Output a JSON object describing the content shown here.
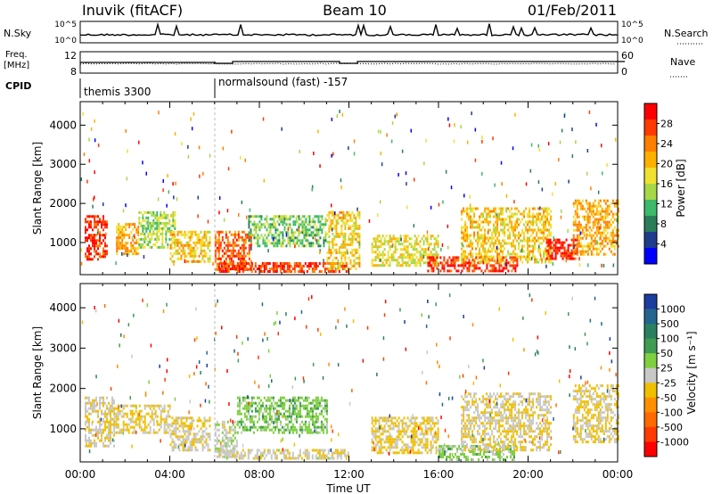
{
  "header": {
    "station": "Inuvik (fitACF)",
    "beam": "Beam 10",
    "date": "01/Feb/2011"
  },
  "summary_panels": {
    "nsky_label": "N.Sky",
    "nsky_ticks": [
      "10^5",
      "10^0"
    ],
    "nsearch_label": "N.Search",
    "nsearch_ticks": [
      "10^5",
      "10^0"
    ],
    "freq_label": "Freq.",
    "freq_unit": "[MHz]",
    "freq_ticks": [
      "12",
      "8"
    ],
    "nave_label": "Nave",
    "nave_ticks": [
      "60",
      "0"
    ],
    "cpid_label": "CPID",
    "cpid_segments": [
      {
        "label": "themis 3300",
        "start_hour": 0
      },
      {
        "label": "normalsound (fast) -157",
        "start_hour": 6
      }
    ]
  },
  "chart_data": [
    {
      "type": "heatmap",
      "name": "power",
      "xlabel": "",
      "ylabel": "Slant Range [km]",
      "xlim": [
        0,
        24
      ],
      "ylim": [
        180,
        4600
      ],
      "y_ticks": [
        1000,
        2000,
        3000,
        4000
      ],
      "colorbar": {
        "label": "Power [dB]",
        "ticks": [
          "28",
          "24",
          "20",
          "16",
          "12",
          "8",
          "4"
        ],
        "colors": [
          "#ff0000",
          "#ff3a00",
          "#ff7f00",
          "#ffb000",
          "#f0e030",
          "#a6d848",
          "#3cb96a",
          "#2a7d58",
          "#203c8c",
          "#0000ff"
        ],
        "range": [
          0,
          30
        ]
      },
      "blobs": [
        {
          "t0": 0.2,
          "t1": 1.2,
          "r0": 600,
          "r1": 1700,
          "v": 26
        },
        {
          "t0": 1.6,
          "t1": 2.6,
          "r0": 700,
          "r1": 1500,
          "v": 20
        },
        {
          "t0": 2.6,
          "t1": 4.2,
          "r0": 900,
          "r1": 1800,
          "v": 14
        },
        {
          "t0": 4.0,
          "t1": 5.8,
          "r0": 500,
          "r1": 1300,
          "v": 18
        },
        {
          "t0": 6.0,
          "t1": 7.6,
          "r0": 300,
          "r1": 1300,
          "v": 24
        },
        {
          "t0": 6.2,
          "t1": 12.0,
          "r0": 250,
          "r1": 500,
          "v": 26
        },
        {
          "t0": 7.5,
          "t1": 11.0,
          "r0": 900,
          "r1": 1700,
          "v": 12
        },
        {
          "t0": 11.0,
          "t1": 12.5,
          "r0": 300,
          "r1": 1800,
          "v": 18
        },
        {
          "t0": 13.0,
          "t1": 16.0,
          "r0": 400,
          "r1": 1200,
          "v": 16
        },
        {
          "t0": 15.5,
          "t1": 19.5,
          "r0": 250,
          "r1": 650,
          "v": 27
        },
        {
          "t0": 17.0,
          "t1": 21.0,
          "r0": 500,
          "r1": 1900,
          "v": 18
        },
        {
          "t0": 20.8,
          "t1": 22.2,
          "r0": 600,
          "r1": 1100,
          "v": 27
        },
        {
          "t0": 22.0,
          "t1": 24.0,
          "r0": 700,
          "r1": 2100,
          "v": 20
        }
      ]
    },
    {
      "type": "heatmap",
      "name": "velocity",
      "xlabel": "Time UT",
      "ylabel": "Slant Range [km]",
      "xlim": [
        0,
        24
      ],
      "ylim": [
        180,
        4600
      ],
      "x_ticks": [
        "00:00",
        "04:00",
        "08:00",
        "12:00",
        "16:00",
        "20:00",
        "00:00"
      ],
      "y_ticks": [
        1000,
        2000,
        3000,
        4000
      ],
      "colorbar": {
        "label": "Velocity [m s⁻¹]",
        "ticks": [
          "1000",
          "500",
          "100",
          "50",
          "25",
          "-25",
          "-50",
          "-100",
          "-500",
          "-1000"
        ],
        "colors": [
          "#1a3d9e",
          "#23658f",
          "#2a8060",
          "#3f9c52",
          "#7fd040",
          "#c8c8c8",
          "#f0c000",
          "#ff9000",
          "#ff6a00",
          "#ff3a00",
          "#ff0000"
        ],
        "range": [
          -1100,
          1100
        ]
      },
      "blobs": [
        {
          "t0": 0.2,
          "t1": 1.5,
          "r0": 600,
          "r1": 1800,
          "v": -80
        },
        {
          "t0": 1.5,
          "t1": 4.0,
          "r0": 900,
          "r1": 1600,
          "v": -120
        },
        {
          "t0": 4.0,
          "t1": 5.8,
          "r0": 500,
          "r1": 1300,
          "v": -60
        },
        {
          "t0": 6.0,
          "t1": 7.0,
          "r0": 300,
          "r1": 1200,
          "v": 30
        },
        {
          "t0": 7.0,
          "t1": 11.0,
          "r0": 900,
          "r1": 1800,
          "v": 220
        },
        {
          "t0": 6.2,
          "t1": 12.0,
          "r0": 250,
          "r1": 500,
          "v": -40
        },
        {
          "t0": 13.0,
          "t1": 16.0,
          "r0": 400,
          "r1": 1300,
          "v": -150
        },
        {
          "t0": 16.0,
          "t1": 19.5,
          "r0": 250,
          "r1": 600,
          "v": 180
        },
        {
          "t0": 17.0,
          "t1": 21.0,
          "r0": 500,
          "r1": 1900,
          "v": -90
        },
        {
          "t0": 22.0,
          "t1": 24.0,
          "r0": 700,
          "r1": 2100,
          "v": -110
        }
      ]
    }
  ]
}
